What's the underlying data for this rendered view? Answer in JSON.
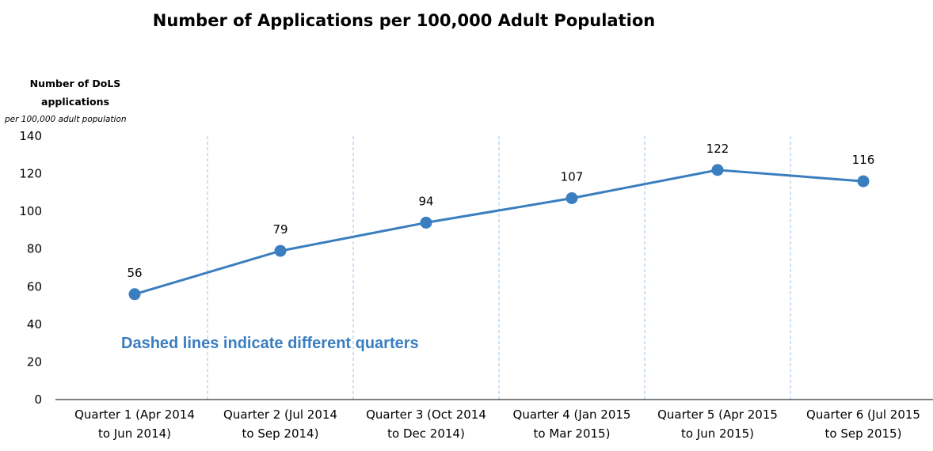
{
  "chart_data": {
    "type": "line",
    "title": "Number of Applications per 100,000 Adult Population",
    "ylabel": "Number of DoLS applications",
    "ylabel_lines": [
      "Number of DoLS",
      "applications"
    ],
    "ylabel_sub": "per 100,000 adult population",
    "xlabel": "",
    "ylim": [
      0,
      140
    ],
    "yticks": [
      0,
      20,
      40,
      60,
      80,
      100,
      120,
      140
    ],
    "categories": [
      "Quarter 1 (Apr 2014 to Jun 2014)",
      "Quarter 2 (Jul 2014 to Sep 2014)",
      "Quarter 3 (Oct 2014 to Dec 2014)",
      "Quarter 4 (Jan 2015 to Mar 2015)",
      "Quarter 5 (Apr 2015 to Jun 2015)",
      "Quarter 6 (Jul 2015 to Sep 2015)"
    ],
    "category_lines": [
      [
        "Quarter 1 (Apr 2014",
        "to Jun 2014)"
      ],
      [
        "Quarter 2 (Jul 2014",
        "to Sep 2014)"
      ],
      [
        "Quarter 3 (Oct 2014",
        "to Dec 2014)"
      ],
      [
        "Quarter 4 (Jan 2015",
        "to Mar 2015)"
      ],
      [
        "Quarter 5 (Apr 2015",
        "to Jun 2015)"
      ],
      [
        "Quarter 6 (Jul 2015",
        "to Sep 2015)"
      ]
    ],
    "series": [
      {
        "values": [
          56,
          79,
          94,
          107,
          122,
          116
        ]
      }
    ],
    "data_labels": [
      "56",
      "79",
      "94",
      "107",
      "122",
      "116"
    ],
    "annotation": "Dashed lines indicate different quarters",
    "grid": false,
    "quarter_dividers": "dashed",
    "legend": "none"
  },
  "colors": {
    "series": "#3A7EBF",
    "annotation": "#3A7EBF",
    "divider": "#9CC3E4",
    "axis": "#000000"
  }
}
